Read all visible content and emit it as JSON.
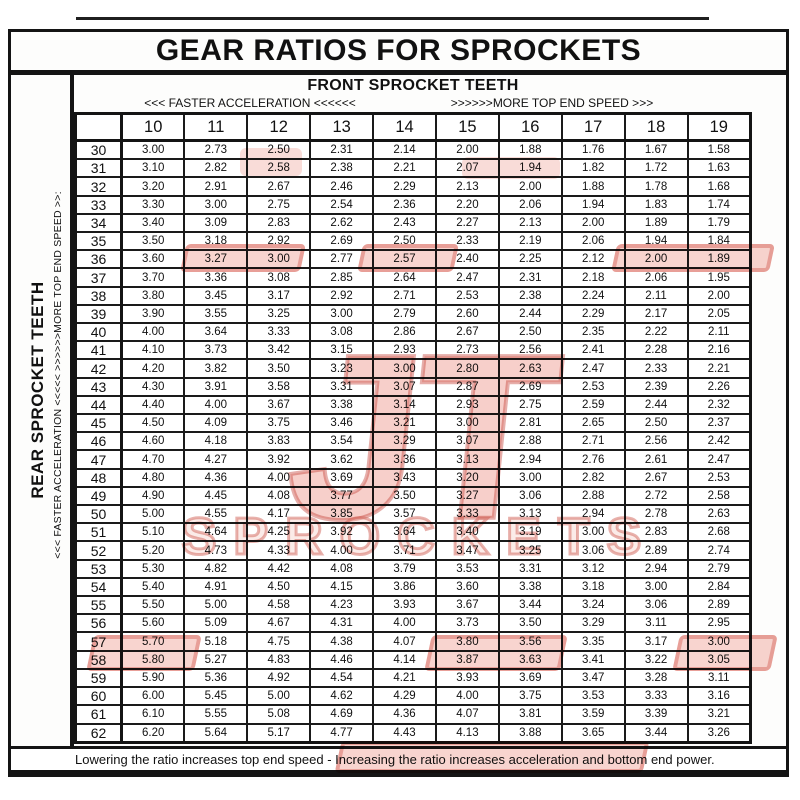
{
  "page": {
    "title": "GEAR RATIOS FOR SPROCKETS",
    "front_header": "FRONT SPROCKET TEETH",
    "front_left_arrow": "<<< FASTER  ACCELERATION <<<<<<",
    "front_right_arrow": ">>>>>>MORE TOP END SPEED >>>",
    "rear_label": "REAR SPROCKET TEETH",
    "rear_arrows": "<<< FASTER  ACCELERATION <<<<<      >>>>>>MORE TOP END SPEED >>:",
    "footer_note": "Lowering the ratio increases top end speed - Increasing the ratio increases acceleration and bottom end power."
  },
  "watermark": {
    "logo_text": "JT",
    "brand_text": "SPROCKETS",
    "accent_color": "#cc4a3e",
    "fill_color": "#f2cdc8"
  },
  "table": {
    "front_teeth": [
      "10",
      "11",
      "12",
      "13",
      "14",
      "15",
      "16",
      "17",
      "18",
      "19"
    ],
    "rows": [
      {
        "rear": "30",
        "ratios": [
          "3.00",
          "2.73",
          "2.50",
          "2.31",
          "2.14",
          "2.00",
          "1.88",
          "1.76",
          "1.67",
          "1.58"
        ]
      },
      {
        "rear": "31",
        "ratios": [
          "3.10",
          "2.82",
          "2.58",
          "2.38",
          "2.21",
          "2.07",
          "1.94",
          "1.82",
          "1.72",
          "1.63"
        ]
      },
      {
        "rear": "32",
        "ratios": [
          "3.20",
          "2.91",
          "2.67",
          "2.46",
          "2.29",
          "2.13",
          "2.00",
          "1.88",
          "1.78",
          "1.68"
        ]
      },
      {
        "rear": "33",
        "ratios": [
          "3.30",
          "3.00",
          "2.75",
          "2.54",
          "2.36",
          "2.20",
          "2.06",
          "1.94",
          "1.83",
          "1.74"
        ]
      },
      {
        "rear": "34",
        "ratios": [
          "3.40",
          "3.09",
          "2.83",
          "2.62",
          "2.43",
          "2.27",
          "2.13",
          "2.00",
          "1.89",
          "1.79"
        ]
      },
      {
        "rear": "35",
        "ratios": [
          "3.50",
          "3.18",
          "2.92",
          "2.69",
          "2.50",
          "2.33",
          "2.19",
          "2.06",
          "1.94",
          "1.84"
        ]
      },
      {
        "rear": "36",
        "ratios": [
          "3.60",
          "3.27",
          "3.00",
          "2.77",
          "2.57",
          "2.40",
          "2.25",
          "2.12",
          "2.00",
          "1.89"
        ]
      },
      {
        "rear": "37",
        "ratios": [
          "3.70",
          "3.36",
          "3.08",
          "2.85",
          "2.64",
          "2.47",
          "2.31",
          "2.18",
          "2.06",
          "1.95"
        ]
      },
      {
        "rear": "38",
        "ratios": [
          "3.80",
          "3.45",
          "3.17",
          "2.92",
          "2.71",
          "2.53",
          "2.38",
          "2.24",
          "2.11",
          "2.00"
        ]
      },
      {
        "rear": "39",
        "ratios": [
          "3.90",
          "3.55",
          "3.25",
          "3.00",
          "2.79",
          "2.60",
          "2.44",
          "2.29",
          "2.17",
          "2.05"
        ]
      },
      {
        "rear": "40",
        "ratios": [
          "4.00",
          "3.64",
          "3.33",
          "3.08",
          "2.86",
          "2.67",
          "2.50",
          "2.35",
          "2.22",
          "2.11"
        ]
      },
      {
        "rear": "41",
        "ratios": [
          "4.10",
          "3.73",
          "3.42",
          "3.15",
          "2.93",
          "2.73",
          "2.56",
          "2.41",
          "2.28",
          "2.16"
        ]
      },
      {
        "rear": "42",
        "ratios": [
          "4.20",
          "3.82",
          "3.50",
          "3.23",
          "3.00",
          "2.80",
          "2.63",
          "2.47",
          "2.33",
          "2.21"
        ]
      },
      {
        "rear": "43",
        "ratios": [
          "4.30",
          "3.91",
          "3.58",
          "3.31",
          "3.07",
          "2.87",
          "2.69",
          "2.53",
          "2.39",
          "2.26"
        ]
      },
      {
        "rear": "44",
        "ratios": [
          "4.40",
          "4.00",
          "3.67",
          "3.38",
          "3.14",
          "2.93",
          "2.75",
          "2.59",
          "2.44",
          "2.32"
        ]
      },
      {
        "rear": "45",
        "ratios": [
          "4.50",
          "4.09",
          "3.75",
          "3.46",
          "3.21",
          "3.00",
          "2.81",
          "2.65",
          "2.50",
          "2.37"
        ]
      },
      {
        "rear": "46",
        "ratios": [
          "4.60",
          "4.18",
          "3.83",
          "3.54",
          "3.29",
          "3.07",
          "2.88",
          "2.71",
          "2.56",
          "2.42"
        ]
      },
      {
        "rear": "47",
        "ratios": [
          "4.70",
          "4.27",
          "3.92",
          "3.62",
          "3.36",
          "3.13",
          "2.94",
          "2.76",
          "2.61",
          "2.47"
        ]
      },
      {
        "rear": "48",
        "ratios": [
          "4.80",
          "4.36",
          "4.00",
          "3.69",
          "3.43",
          "3.20",
          "3.00",
          "2.82",
          "2.67",
          "2.53"
        ]
      },
      {
        "rear": "49",
        "ratios": [
          "4.90",
          "4.45",
          "4.08",
          "3.77",
          "3.50",
          "3.27",
          "3.06",
          "2.88",
          "2.72",
          "2.58"
        ]
      },
      {
        "rear": "50",
        "ratios": [
          "5.00",
          "4.55",
          "4.17",
          "3.85",
          "3.57",
          "3.33",
          "3.13",
          "2.94",
          "2.78",
          "2.63"
        ]
      },
      {
        "rear": "51",
        "ratios": [
          "5.10",
          "4.64",
          "4.25",
          "3.92",
          "3.64",
          "3.40",
          "3.19",
          "3.00",
          "2.83",
          "2.68"
        ]
      },
      {
        "rear": "52",
        "ratios": [
          "5.20",
          "4.73",
          "4.33",
          "4.00",
          "3.71",
          "3.47",
          "3.25",
          "3.06",
          "2.89",
          "2.74"
        ]
      },
      {
        "rear": "53",
        "ratios": [
          "5.30",
          "4.82",
          "4.42",
          "4.08",
          "3.79",
          "3.53",
          "3.31",
          "3.12",
          "2.94",
          "2.79"
        ]
      },
      {
        "rear": "54",
        "ratios": [
          "5.40",
          "4.91",
          "4.50",
          "4.15",
          "3.86",
          "3.60",
          "3.38",
          "3.18",
          "3.00",
          "2.84"
        ]
      },
      {
        "rear": "55",
        "ratios": [
          "5.50",
          "5.00",
          "4.58",
          "4.23",
          "3.93",
          "3.67",
          "3.44",
          "3.24",
          "3.06",
          "2.89"
        ]
      },
      {
        "rear": "56",
        "ratios": [
          "5.60",
          "5.09",
          "4.67",
          "4.31",
          "4.00",
          "3.73",
          "3.50",
          "3.29",
          "3.11",
          "2.95"
        ]
      },
      {
        "rear": "57",
        "ratios": [
          "5.70",
          "5.18",
          "4.75",
          "4.38",
          "4.07",
          "3.80",
          "3.56",
          "3.35",
          "3.17",
          "3.00"
        ]
      },
      {
        "rear": "58",
        "ratios": [
          "5.80",
          "5.27",
          "4.83",
          "4.46",
          "4.14",
          "3.87",
          "3.63",
          "3.41",
          "3.22",
          "3.05"
        ]
      },
      {
        "rear": "59",
        "ratios": [
          "5.90",
          "5.36",
          "4.92",
          "4.54",
          "4.21",
          "3.93",
          "3.69",
          "3.47",
          "3.28",
          "3.11"
        ]
      },
      {
        "rear": "60",
        "ratios": [
          "6.00",
          "5.45",
          "5.00",
          "4.62",
          "4.29",
          "4.00",
          "3.75",
          "3.53",
          "3.33",
          "3.16"
        ]
      },
      {
        "rear": "61",
        "ratios": [
          "6.10",
          "5.55",
          "5.08",
          "4.69",
          "4.36",
          "4.07",
          "3.81",
          "3.59",
          "3.39",
          "3.21"
        ]
      },
      {
        "rear": "62",
        "ratios": [
          "6.20",
          "5.64",
          "5.17",
          "4.77",
          "4.43",
          "4.13",
          "3.88",
          "3.65",
          "3.44",
          "3.26"
        ]
      }
    ]
  }
}
